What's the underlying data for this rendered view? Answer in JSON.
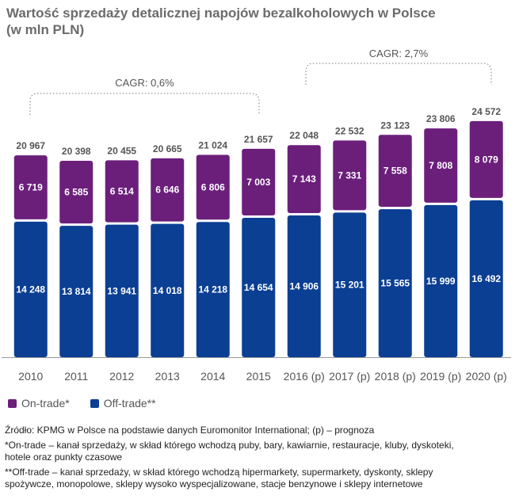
{
  "title": {
    "line1": "Wartość sprzedaży detalicznej napojów bezalkoholowych w Polsce",
    "line2": "(w mln PLN)"
  },
  "colors": {
    "on_trade": "#6b1f7b",
    "off_trade": "#0b3f93",
    "axis": "#9a9a9a",
    "annotation": "#555555"
  },
  "chart_data": {
    "type": "bar",
    "stacked": true,
    "categories": [
      "2010",
      "2011",
      "2012",
      "2013",
      "2014",
      "2015",
      "2016 (p)",
      "2017 (p)",
      "2018 (p)",
      "2019 (p)",
      "2020 (p)"
    ],
    "series": [
      {
        "name": "Off-trade**",
        "values": [
          14248,
          13814,
          13941,
          14018,
          14218,
          14654,
          14906,
          15201,
          15565,
          15999,
          16492
        ],
        "labels": [
          "14 248",
          "13 814",
          "13 941",
          "14 018",
          "14 218",
          "14 654",
          "14 906",
          "15 201",
          "15 565",
          "15 999",
          "16 492"
        ]
      },
      {
        "name": "On-trade*",
        "values": [
          6719,
          6585,
          6514,
          6646,
          6806,
          7003,
          7143,
          7331,
          7558,
          7808,
          8079
        ],
        "labels": [
          "6 719",
          "6 585",
          "6 514",
          "6 646",
          "6 806",
          "7 003",
          "7 143",
          "7 331",
          "7 558",
          "7 808",
          "8 079"
        ]
      }
    ],
    "totals": [
      20967,
      20398,
      20455,
      20665,
      21024,
      21657,
      22048,
      22532,
      23123,
      23806,
      24572
    ],
    "total_labels": [
      "20 967",
      "20 398",
      "20 455",
      "20 665",
      "21 024",
      "21 657",
      "22 048",
      "22 532",
      "23 123",
      "23 806",
      "24 572"
    ],
    "annotations": [
      {
        "text": "CAGR: 0,6%",
        "from": "2010",
        "to": "2015"
      },
      {
        "text": "CAGR: 2,7%",
        "from": "2016 (p)",
        "to": "2020 (p)"
      }
    ],
    "title": "Wartość sprzedaży detalicznej napojów bezalkoholowych w Polsce (w mln PLN)",
    "ylim": [
      0,
      27000
    ],
    "grid": false,
    "legend": "bottom-left"
  },
  "legend": {
    "on_trade_label": "On-trade*",
    "off_trade_label": "Off-trade**"
  },
  "notes": {
    "source": "Źródło: KPMG w Polsce na podstawie danych Euromonitor International; (p) – prognoza",
    "on_trade_line1": "*On-trade – kanał sprzedaży, w skład którego wchodzą puby, bary, kawiarnie, restauracje, kluby, dyskoteki,",
    "on_trade_line2": "hotele oraz punkty czasowe",
    "off_trade_line1": "**Off-trade – kanał sprzedaży, w skład którego wchodzą hipermarkety, supermarkety, dyskonty, sklepy",
    "off_trade_line2": "spożywcze, monopolowe, sklepy wysoko wyspecjalizowane, stacje benzynowe i sklepy internetowe"
  }
}
